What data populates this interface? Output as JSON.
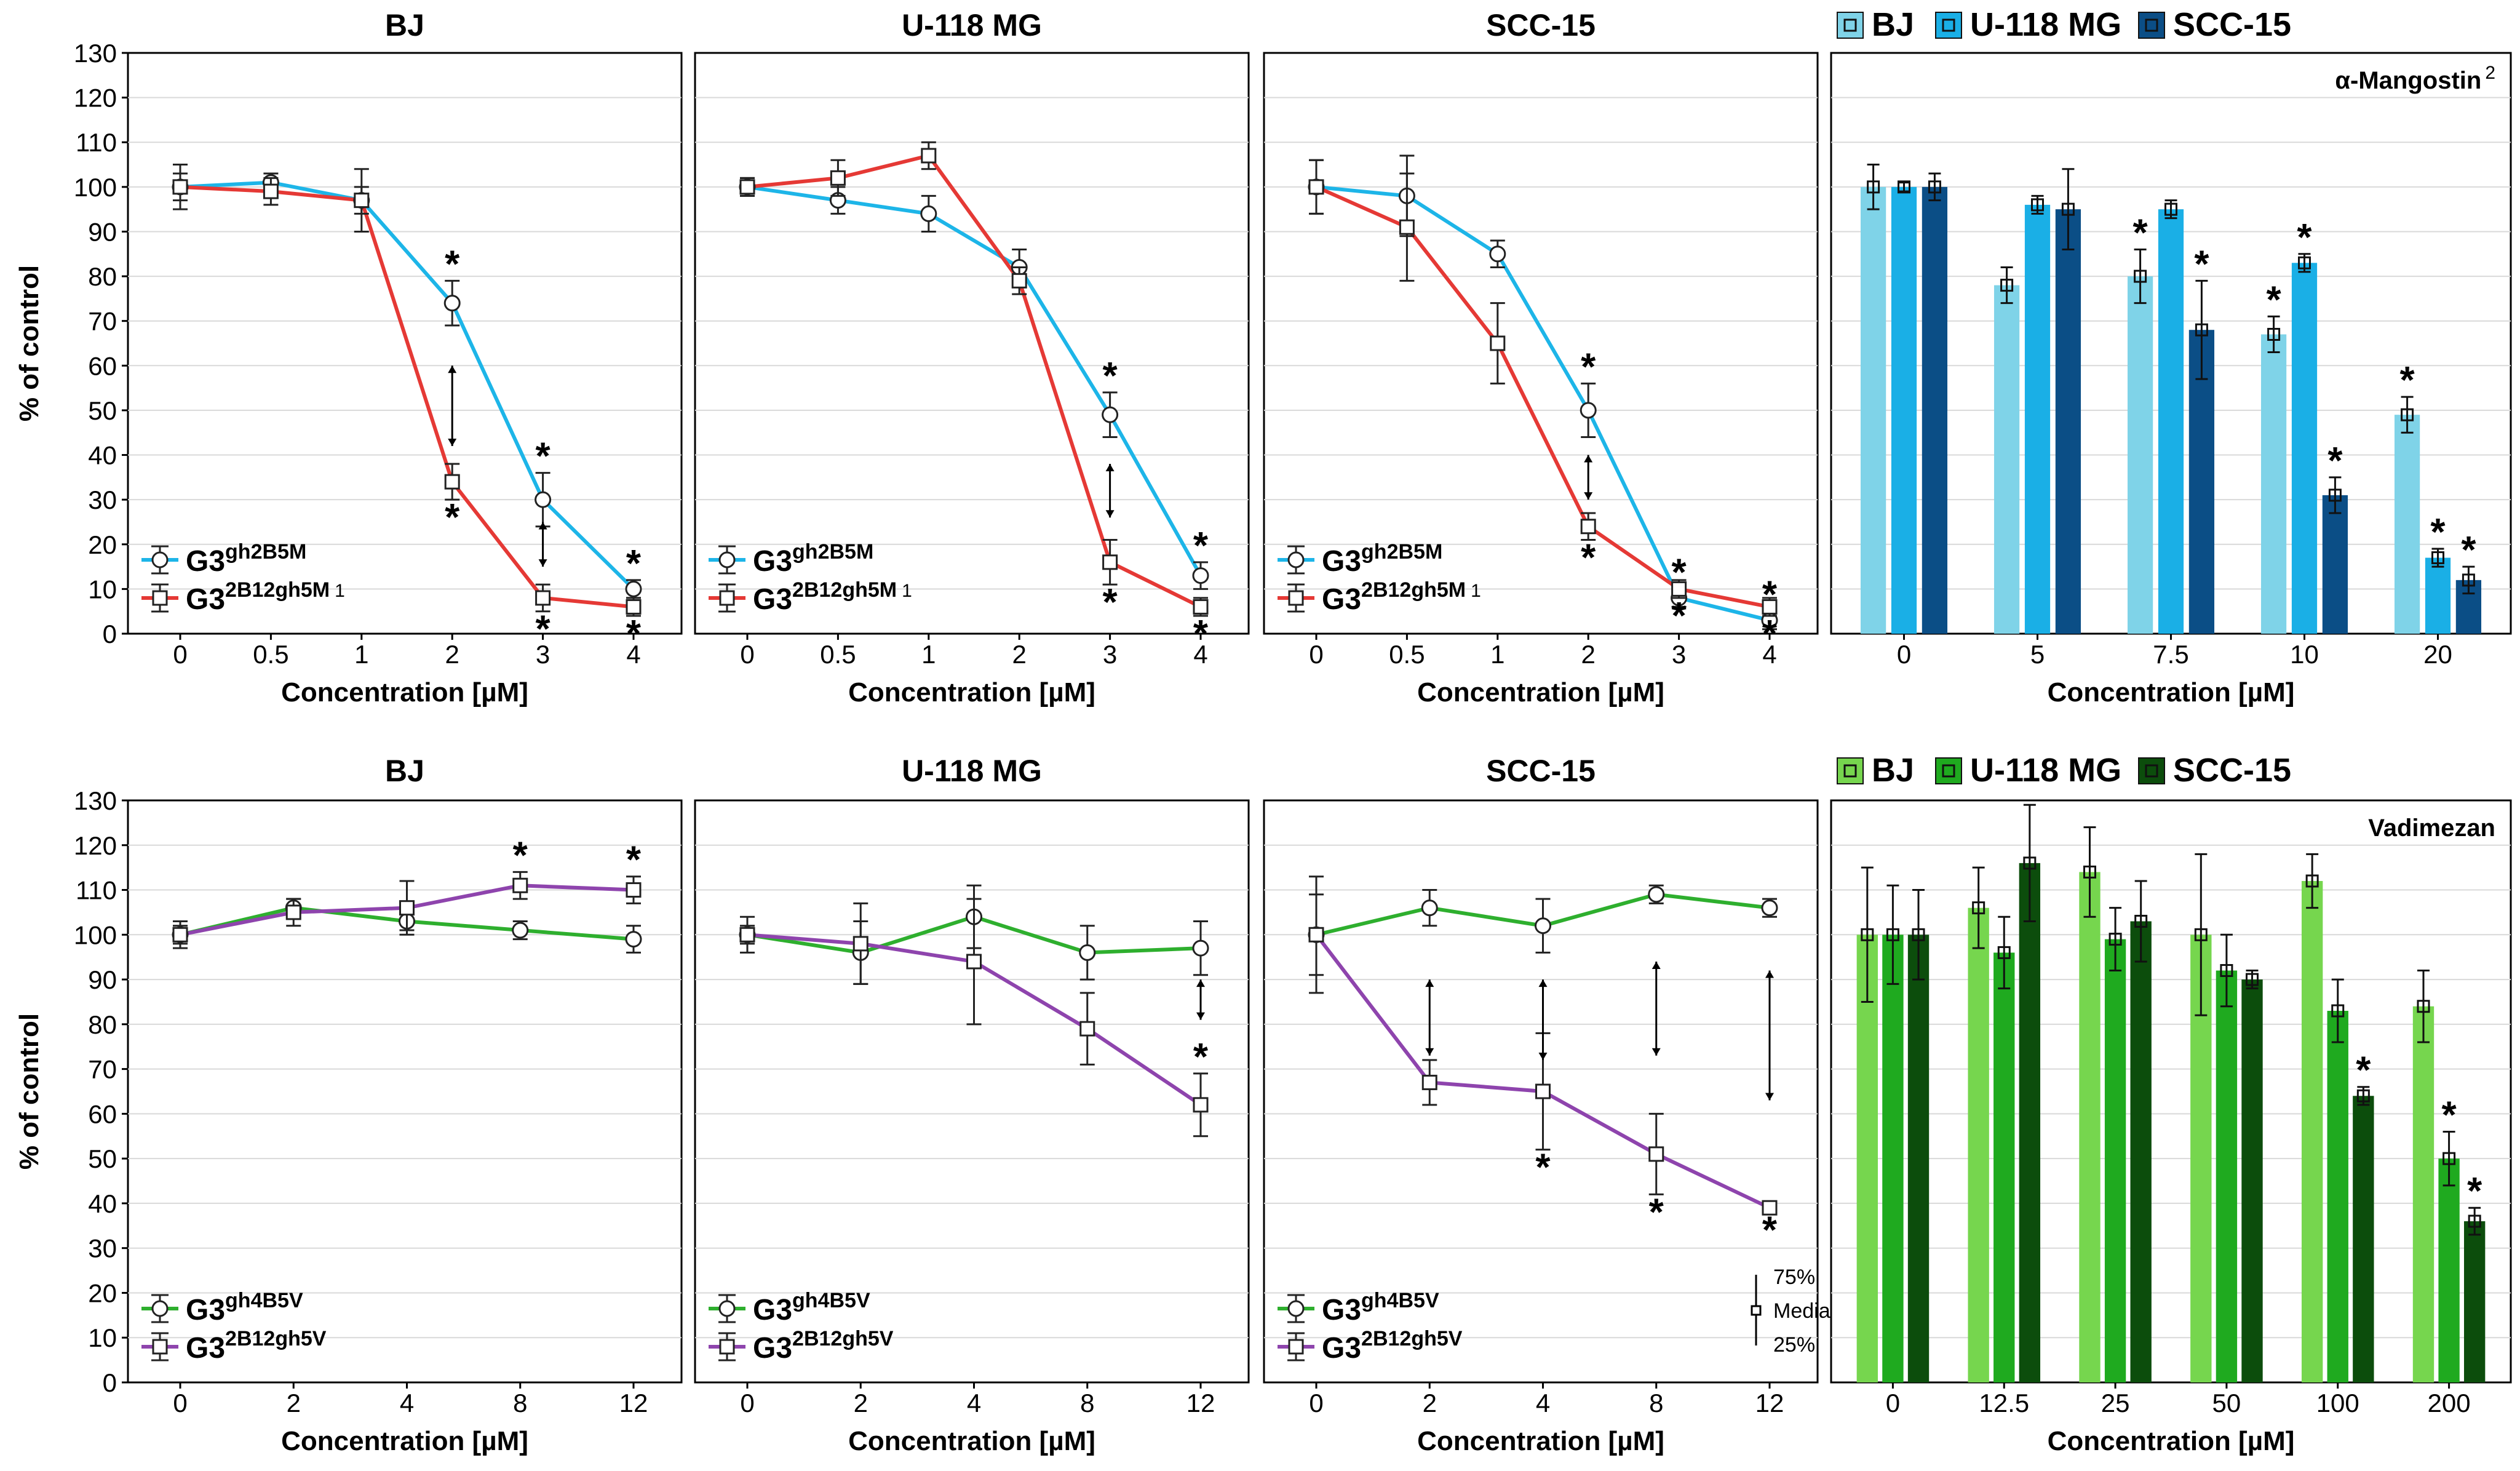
{
  "colors": {
    "blue_line": "#1DB5E8",
    "red_line": "#E53935",
    "green_line": "#2EAF2E",
    "purple_line": "#8E44AD",
    "bar_bj_top": "#7FD3E8",
    "bar_u118_top": "#1AAFE6",
    "bar_scc_top": "#0B4E86",
    "bar_bj_bottom": "#76D64E",
    "bar_u118_bottom": "#1FAA1F",
    "bar_scc_bottom": "#0C4D0C",
    "grid": "#D9D9D9",
    "axis": "#000000"
  },
  "labels": {
    "y_label": "% of control",
    "x_label": "Concentration [µM]",
    "star": "*",
    "note_75": "75%",
    "note_median": "Median",
    "note_25": "25%"
  },
  "chart_data": [
    {
      "id": "top_bj",
      "type": "line",
      "title": "BJ",
      "x_categories": [
        "0",
        "0.5",
        "1",
        "2",
        "3",
        "4"
      ],
      "ylim": [
        0,
        130
      ],
      "yticks": [
        0,
        10,
        20,
        30,
        40,
        50,
        60,
        70,
        80,
        90,
        100,
        110,
        120,
        130
      ],
      "xlabel": "Concentration [µM]",
      "ylabel": "% of control",
      "series": [
        {
          "name_base": "G3",
          "name_sup": "gh2B5M",
          "marker": "circle",
          "color": "#1DB5E8",
          "values": [
            100,
            101,
            97,
            74,
            30,
            10
          ],
          "err": [
            3,
            2,
            3,
            5,
            6,
            2
          ],
          "stars": [
            false,
            false,
            false,
            true,
            true,
            true
          ],
          "star_pos": [
            "",
            "",
            "",
            "above",
            "above",
            "above"
          ]
        },
        {
          "name_base": "G3",
          "name_sup": "2B12gh5M",
          "name_sup2": "1",
          "marker": "square",
          "color": "#E53935",
          "values": [
            100,
            99,
            97,
            34,
            8,
            6
          ],
          "err": [
            5,
            3,
            7,
            4,
            3,
            2
          ],
          "stars": [
            false,
            false,
            false,
            true,
            true,
            true
          ],
          "star_pos": [
            "",
            "",
            "",
            "below",
            "below",
            "below"
          ]
        }
      ]
    },
    {
      "id": "top_u118",
      "type": "line",
      "title": "U-118 MG",
      "x_categories": [
        "0",
        "0.5",
        "1",
        "2",
        "3",
        "4"
      ],
      "ylim": [
        0,
        130
      ],
      "yticks": [
        0,
        10,
        20,
        30,
        40,
        50,
        60,
        70,
        80,
        90,
        100,
        110,
        120,
        130
      ],
      "xlabel": "Concentration [µM]",
      "ylabel": "% of control",
      "series": [
        {
          "name_base": "G3",
          "name_sup": "gh2B5M",
          "marker": "circle",
          "color": "#1DB5E8",
          "values": [
            100,
            97,
            94,
            82,
            49,
            13
          ],
          "err": [
            2,
            3,
            4,
            4,
            5,
            3
          ],
          "stars": [
            false,
            false,
            false,
            false,
            true,
            true
          ],
          "star_pos": [
            "",
            "",
            "",
            "",
            "above",
            "above"
          ]
        },
        {
          "name_base": "G3",
          "name_sup": "2B12gh5M",
          "name_sup2": "1",
          "marker": "square",
          "color": "#E53935",
          "values": [
            100,
            102,
            107,
            79,
            16,
            6
          ],
          "err": [
            2,
            4,
            3,
            3,
            5,
            2
          ],
          "stars": [
            false,
            false,
            false,
            false,
            true,
            true
          ],
          "star_pos": [
            "",
            "",
            "",
            "",
            "below",
            "below"
          ]
        }
      ]
    },
    {
      "id": "top_scc",
      "type": "line",
      "title": "SCC-15",
      "x_categories": [
        "0",
        "0.5",
        "1",
        "2",
        "3",
        "4"
      ],
      "ylim": [
        0,
        130
      ],
      "yticks": [
        0,
        10,
        20,
        30,
        40,
        50,
        60,
        70,
        80,
        90,
        100,
        110,
        120,
        130
      ],
      "xlabel": "Concentration [µM]",
      "ylabel": "% of control",
      "series": [
        {
          "name_base": "G3",
          "name_sup": "gh2B5M",
          "marker": "circle",
          "color": "#1DB5E8",
          "values": [
            100,
            98,
            85,
            50,
            8,
            3
          ],
          "err": [
            6,
            9,
            3,
            6,
            2,
            2
          ],
          "stars": [
            false,
            false,
            false,
            true,
            true,
            true
          ],
          "star_pos": [
            "",
            "",
            "",
            "above",
            "above",
            "above"
          ]
        },
        {
          "name_base": "G3",
          "name_sup": "2B12gh5M",
          "name_sup2": "1",
          "marker": "square",
          "color": "#E53935",
          "values": [
            100,
            91,
            65,
            24,
            10,
            6
          ],
          "err": [
            6,
            12,
            9,
            3,
            2,
            2
          ],
          "stars": [
            false,
            false,
            false,
            true,
            true,
            true
          ],
          "star_pos": [
            "",
            "",
            "",
            "below",
            "below",
            "below"
          ]
        }
      ]
    },
    {
      "id": "top_bar",
      "type": "bar",
      "annotation": "α-Mangostin",
      "annotation_sup": "2",
      "categories": [
        "0",
        "5",
        "7.5",
        "10",
        "20"
      ],
      "ylim": [
        0,
        130
      ],
      "xlabel": "Concentration [µM]",
      "series": [
        {
          "name": "BJ",
          "color": "#7FD3E8",
          "values": [
            100,
            78,
            80,
            67,
            49
          ],
          "err": [
            5,
            4,
            6,
            4,
            4
          ],
          "stars": [
            false,
            false,
            true,
            true,
            true
          ]
        },
        {
          "name": "U-118 MG",
          "color": "#1AAFE6",
          "values": [
            100,
            96,
            95,
            83,
            17
          ],
          "err": [
            1,
            2,
            2,
            2,
            2
          ],
          "stars": [
            false,
            false,
            false,
            true,
            true
          ]
        },
        {
          "name": "SCC-15",
          "color": "#0B4E86",
          "values": [
            100,
            95,
            68,
            31,
            12
          ],
          "err": [
            3,
            9,
            11,
            4,
            3
          ],
          "stars": [
            false,
            false,
            true,
            true,
            true
          ]
        }
      ]
    },
    {
      "id": "bottom_bj",
      "type": "line",
      "title": "BJ",
      "x_categories": [
        "0",
        "2",
        "4",
        "8",
        "12"
      ],
      "ylim": [
        0,
        130
      ],
      "yticks": [
        0,
        10,
        20,
        30,
        40,
        50,
        60,
        70,
        80,
        90,
        100,
        110,
        120,
        130
      ],
      "xlabel": "Concentration [µM]",
      "ylabel": "% of control",
      "series": [
        {
          "name_base": "G3",
          "name_sup": "gh4B5V",
          "marker": "circle",
          "color": "#2EAF2E",
          "values": [
            100,
            106,
            103,
            101,
            99
          ],
          "err": [
            3,
            2,
            2,
            2,
            3
          ],
          "stars": [
            false,
            false,
            false,
            false,
            false
          ],
          "star_pos": [
            "",
            "",
            "",
            "",
            ""
          ]
        },
        {
          "name_base": "G3",
          "name_sup": "2B12gh5V",
          "marker": "square",
          "color": "#8E44AD",
          "values": [
            100,
            105,
            106,
            111,
            110
          ],
          "err": [
            2,
            3,
            6,
            3,
            3
          ],
          "stars": [
            false,
            false,
            false,
            true,
            true
          ],
          "star_pos": [
            "",
            "",
            "",
            "above",
            "above"
          ]
        }
      ]
    },
    {
      "id": "bottom_u118",
      "type": "line",
      "title": "U-118 MG",
      "x_categories": [
        "0",
        "2",
        "4",
        "8",
        "12"
      ],
      "ylim": [
        0,
        130
      ],
      "yticks": [
        0,
        10,
        20,
        30,
        40,
        50,
        60,
        70,
        80,
        90,
        100,
        110,
        120,
        130
      ],
      "xlabel": "Concentration [µM]",
      "ylabel": "% of control",
      "series": [
        {
          "name_base": "G3",
          "name_sup": "gh4B5V",
          "marker": "circle",
          "color": "#2EAF2E",
          "values": [
            100,
            96,
            104,
            96,
            97
          ],
          "err": [
            4,
            7,
            7,
            6,
            6
          ],
          "stars": [
            false,
            false,
            false,
            false,
            false
          ],
          "star_pos": [
            "",
            "",
            "",
            "",
            ""
          ]
        },
        {
          "name_base": "G3",
          "name_sup": "2B12gh5V",
          "marker": "square",
          "color": "#8E44AD",
          "values": [
            100,
            98,
            94,
            79,
            62
          ],
          "err": [
            2,
            9,
            14,
            8,
            7
          ],
          "stars": [
            false,
            false,
            false,
            false,
            true
          ],
          "star_pos": [
            "",
            "",
            "",
            "",
            "above"
          ]
        }
      ]
    },
    {
      "id": "bottom_scc",
      "type": "line",
      "title": "SCC-15",
      "x_categories": [
        "0",
        "2",
        "4",
        "8",
        "12"
      ],
      "ylim": [
        0,
        130
      ],
      "yticks": [
        0,
        10,
        20,
        30,
        40,
        50,
        60,
        70,
        80,
        90,
        100,
        110,
        120,
        130
      ],
      "xlabel": "Concentration [µM]",
      "ylabel": "% of control",
      "series": [
        {
          "name_base": "G3",
          "name_sup": "gh4B5V",
          "marker": "circle",
          "color": "#2EAF2E",
          "values": [
            100,
            106,
            102,
            109,
            106
          ],
          "err": [
            13,
            4,
            6,
            2,
            2
          ],
          "stars": [
            false,
            false,
            false,
            false,
            false
          ],
          "star_pos": [
            "",
            "",
            "",
            "",
            ""
          ]
        },
        {
          "name_base": "G3",
          "name_sup": "2B12gh5V",
          "marker": "square",
          "color": "#8E44AD",
          "values": [
            100,
            67,
            65,
            51,
            39
          ],
          "err": [
            9,
            5,
            13,
            9,
            1
          ],
          "stars": [
            false,
            false,
            true,
            true,
            true
          ],
          "star_pos": [
            "",
            "",
            "below",
            "below",
            "below"
          ]
        }
      ]
    },
    {
      "id": "bottom_bar",
      "type": "bar",
      "annotation": "Vadimezan",
      "annotation_sup": "",
      "categories": [
        "0",
        "12.5",
        "25",
        "50",
        "100",
        "200"
      ],
      "ylim": [
        0,
        130
      ],
      "xlabel": "Concentration [µM]",
      "series": [
        {
          "name": "BJ",
          "color": "#76D64E",
          "values": [
            100,
            106,
            114,
            100,
            112,
            84
          ],
          "err": [
            15,
            9,
            10,
            18,
            6,
            8
          ],
          "stars": [
            false,
            false,
            false,
            false,
            false,
            false
          ]
        },
        {
          "name": "U-118 MG",
          "color": "#1FAA1F",
          "values": [
            100,
            96,
            99,
            92,
            83,
            50
          ],
          "err": [
            11,
            8,
            7,
            8,
            7,
            6
          ],
          "stars": [
            false,
            false,
            false,
            false,
            false,
            true
          ]
        },
        {
          "name": "SCC-15",
          "color": "#0C4D0C",
          "values": [
            100,
            116,
            103,
            90,
            64,
            36
          ],
          "err": [
            10,
            13,
            9,
            2,
            2,
            3
          ],
          "stars": [
            false,
            false,
            false,
            false,
            true,
            true
          ]
        }
      ]
    }
  ]
}
